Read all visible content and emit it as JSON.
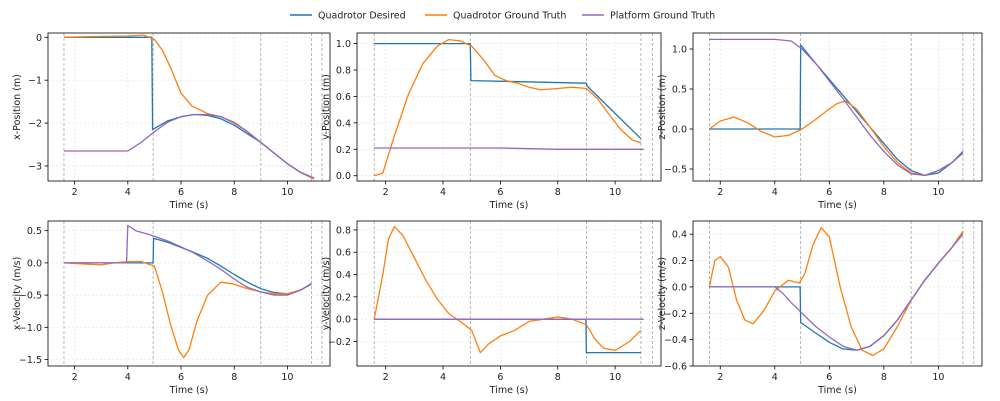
{
  "legend": {
    "entries": [
      {
        "label": "Quadrotor Desired",
        "color": "#1f77b4"
      },
      {
        "label": "Quadrotor Ground Truth",
        "color": "#ff7f0e"
      },
      {
        "label": "Platform Ground Truth",
        "color": "#9467bd"
      }
    ],
    "placement": "top-center"
  },
  "chart_data": [
    {
      "type": "line",
      "xlabel": "Time (s)",
      "ylabel": "x-Position (m)",
      "xlim": [
        1.0,
        11.6
      ],
      "ylim": [
        -3.35,
        0.1
      ],
      "xticks": [
        2,
        4,
        6,
        8,
        10
      ],
      "yticks": [
        0,
        -1,
        -2,
        -3
      ],
      "yticklabels": [
        "0",
        "−1",
        "−2",
        "−3"
      ],
      "vlines": [
        1.6,
        4.95,
        9.0,
        10.9,
        11.3
      ],
      "grid": true,
      "series": [
        {
          "name": "Quadrotor Desired",
          "color": "#1f77b4",
          "x": [
            1.6,
            4.9,
            4.93,
            5.5,
            6.0,
            6.5,
            7.0,
            7.5,
            8.0,
            8.5,
            9.0,
            9.5,
            10.0,
            10.5,
            11.0
          ],
          "y": [
            0.0,
            0.0,
            -2.15,
            -1.95,
            -1.85,
            -1.8,
            -1.82,
            -1.9,
            -2.05,
            -2.25,
            -2.45,
            -2.7,
            -2.95,
            -3.15,
            -3.3
          ]
        },
        {
          "name": "Quadrotor Ground Truth",
          "color": "#ff7f0e",
          "x": [
            1.6,
            3.0,
            4.0,
            4.6,
            5.0,
            5.3,
            5.6,
            6.0,
            6.4,
            7.0,
            7.5,
            8.0,
            8.5,
            9.0,
            9.5,
            10.0,
            10.5,
            11.0
          ],
          "y": [
            0.0,
            0.02,
            0.03,
            0.05,
            -0.05,
            -0.3,
            -0.7,
            -1.3,
            -1.6,
            -1.78,
            -1.85,
            -1.98,
            -2.2,
            -2.45,
            -2.7,
            -2.95,
            -3.15,
            -3.3
          ]
        },
        {
          "name": "Platform Ground Truth",
          "color": "#9467bd",
          "x": [
            1.6,
            3.0,
            4.0,
            4.5,
            5.0,
            5.5,
            6.0,
            6.5,
            7.0,
            7.5,
            8.0,
            8.5,
            9.0,
            9.5,
            10.0,
            10.5,
            11.0
          ],
          "y": [
            -2.65,
            -2.65,
            -2.65,
            -2.45,
            -2.2,
            -1.98,
            -1.85,
            -1.8,
            -1.8,
            -1.85,
            -2.0,
            -2.2,
            -2.45,
            -2.7,
            -2.95,
            -3.15,
            -3.28
          ]
        }
      ]
    },
    {
      "type": "line",
      "xlabel": "Time (s)",
      "ylabel": "y-Position (m)",
      "xlim": [
        1.0,
        11.6
      ],
      "ylim": [
        -0.04,
        1.08
      ],
      "xticks": [
        2,
        4,
        6,
        8,
        10
      ],
      "yticks": [
        0.0,
        0.2,
        0.4,
        0.6,
        0.8,
        1.0
      ],
      "yticklabels": [
        "0.0",
        "0.2",
        "0.4",
        "0.6",
        "0.8",
        "1.0"
      ],
      "vlines": [
        1.6,
        4.95,
        9.0,
        10.9,
        11.3
      ],
      "grid": true,
      "series": [
        {
          "name": "Quadrotor Desired",
          "color": "#1f77b4",
          "x": [
            1.6,
            4.95,
            4.97,
            9.0,
            9.02,
            10.9
          ],
          "y": [
            1.0,
            1.0,
            0.72,
            0.7,
            0.68,
            0.28
          ]
        },
        {
          "name": "Quadrotor Ground Truth",
          "color": "#ff7f0e",
          "x": [
            1.6,
            1.9,
            2.3,
            2.8,
            3.3,
            3.8,
            4.2,
            4.6,
            5.0,
            5.4,
            5.8,
            6.2,
            6.6,
            7.0,
            7.4,
            8.0,
            8.5,
            9.0,
            9.4,
            9.8,
            10.2,
            10.6,
            10.9
          ],
          "y": [
            0.0,
            0.02,
            0.3,
            0.62,
            0.85,
            0.98,
            1.03,
            1.02,
            0.98,
            0.88,
            0.76,
            0.72,
            0.7,
            0.67,
            0.65,
            0.66,
            0.67,
            0.66,
            0.58,
            0.46,
            0.35,
            0.27,
            0.25
          ]
        },
        {
          "name": "Platform Ground Truth",
          "color": "#9467bd",
          "x": [
            1.6,
            4.0,
            6.0,
            8.0,
            9.5,
            11.0
          ],
          "y": [
            0.21,
            0.21,
            0.21,
            0.2,
            0.2,
            0.2
          ]
        }
      ]
    },
    {
      "type": "line",
      "xlabel": "Time (s)",
      "ylabel": "z-Position (m)",
      "xlim": [
        1.0,
        11.6
      ],
      "ylim": [
        -0.65,
        1.2
      ],
      "xticks": [
        2,
        4,
        6,
        8,
        10
      ],
      "yticks": [
        -0.5,
        0.0,
        0.5,
        1.0
      ],
      "yticklabels": [
        "−0.5",
        "0.0",
        "0.5",
        "1.0"
      ],
      "vlines": [
        1.6,
        4.95,
        9.0,
        10.9,
        11.3
      ],
      "grid": true,
      "series": [
        {
          "name": "Quadrotor Desired",
          "color": "#1f77b4",
          "x": [
            1.6,
            4.93,
            4.95,
            5.5,
            6.0,
            6.5,
            7.0,
            7.5,
            8.0,
            8.5,
            9.0,
            9.5,
            10.0,
            10.5,
            10.9
          ],
          "y": [
            0.0,
            0.0,
            1.05,
            0.82,
            0.62,
            0.42,
            0.22,
            0.02,
            -0.18,
            -0.38,
            -0.52,
            -0.58,
            -0.55,
            -0.42,
            -0.28
          ]
        },
        {
          "name": "Quadrotor Ground Truth",
          "color": "#ff7f0e",
          "x": [
            1.6,
            2.0,
            2.5,
            3.0,
            3.5,
            4.0,
            4.5,
            5.0,
            5.5,
            6.0,
            6.3,
            6.6,
            7.0,
            7.5,
            8.0,
            8.5,
            9.0,
            9.5,
            10.0,
            10.5,
            10.9
          ],
          "y": [
            0.0,
            0.1,
            0.15,
            0.08,
            -0.03,
            -0.1,
            -0.08,
            0.0,
            0.12,
            0.25,
            0.32,
            0.35,
            0.25,
            0.02,
            -0.22,
            -0.42,
            -0.55,
            -0.58,
            -0.52,
            -0.42,
            -0.3
          ]
        },
        {
          "name": "Platform Ground Truth",
          "color": "#9467bd",
          "x": [
            1.6,
            3.0,
            4.0,
            4.6,
            5.0,
            5.5,
            6.0,
            6.5,
            7.0,
            7.5,
            8.0,
            8.5,
            9.0,
            9.5,
            10.0,
            10.5,
            10.9
          ],
          "y": [
            1.12,
            1.12,
            1.12,
            1.1,
            1.0,
            0.82,
            0.6,
            0.38,
            0.15,
            -0.08,
            -0.28,
            -0.45,
            -0.56,
            -0.58,
            -0.52,
            -0.42,
            -0.3
          ]
        }
      ]
    },
    {
      "type": "line",
      "xlabel": "Time (s)",
      "ylabel": "x-Velocity (m/s)",
      "xlim": [
        1.0,
        11.6
      ],
      "ylim": [
        -1.6,
        0.65
      ],
      "xticks": [
        2,
        4,
        6,
        8,
        10
      ],
      "yticks": [
        0.5,
        0.0,
        -0.5,
        -1.0,
        -1.5
      ],
      "yticklabels": [
        "0.5",
        "0.0",
        "−0.5",
        "−1.0",
        "−1.5"
      ],
      "vlines": [
        1.6,
        4.95,
        9.0,
        10.9,
        11.3
      ],
      "grid": true,
      "series": [
        {
          "name": "Quadrotor Desired",
          "color": "#1f77b4",
          "x": [
            1.6,
            4.95,
            4.97,
            5.5,
            6.0,
            6.5,
            7.0,
            7.5,
            8.0,
            8.5,
            9.0,
            9.5,
            10.0,
            10.5,
            10.9
          ],
          "y": [
            0.0,
            0.0,
            0.38,
            0.32,
            0.24,
            0.16,
            0.07,
            -0.05,
            -0.18,
            -0.3,
            -0.4,
            -0.46,
            -0.48,
            -0.42,
            -0.32
          ]
        },
        {
          "name": "Quadrotor Ground Truth",
          "color": "#ff7f0e",
          "x": [
            1.6,
            2.5,
            3.0,
            3.5,
            4.0,
            4.5,
            5.0,
            5.3,
            5.6,
            5.9,
            6.1,
            6.3,
            6.6,
            7.0,
            7.5,
            8.0,
            8.5,
            9.0,
            9.5,
            10.0,
            10.5,
            10.9
          ],
          "y": [
            0.0,
            -0.02,
            -0.03,
            0.0,
            0.02,
            0.02,
            -0.05,
            -0.45,
            -0.95,
            -1.35,
            -1.47,
            -1.35,
            -0.9,
            -0.5,
            -0.3,
            -0.33,
            -0.4,
            -0.45,
            -0.48,
            -0.48,
            -0.42,
            -0.33
          ]
        },
        {
          "name": "Platform Ground Truth",
          "color": "#9467bd",
          "x": [
            1.6,
            3.5,
            3.95,
            4.0,
            4.3,
            4.8,
            5.5,
            6.0,
            6.5,
            7.0,
            7.5,
            8.0,
            8.5,
            9.0,
            9.5,
            10.0,
            10.5,
            10.9
          ],
          "y": [
            0.0,
            0.0,
            0.0,
            0.58,
            0.5,
            0.44,
            0.34,
            0.25,
            0.15,
            0.03,
            -0.1,
            -0.25,
            -0.38,
            -0.45,
            -0.5,
            -0.5,
            -0.42,
            -0.33
          ]
        }
      ]
    },
    {
      "type": "line",
      "xlabel": "Time (s)",
      "ylabel": "y-Velocity (m/s)",
      "xlim": [
        1.0,
        11.6
      ],
      "ylim": [
        -0.42,
        0.88
      ],
      "xticks": [
        2,
        4,
        6,
        8,
        10
      ],
      "yticks": [
        0.8,
        0.6,
        0.4,
        0.2,
        0.0,
        -0.2
      ],
      "yticklabels": [
        "0.8",
        "0.6",
        "0.4",
        "0.2",
        "0.0",
        "−0.2"
      ],
      "vlines": [
        1.6,
        4.95,
        9.0,
        10.9,
        11.3
      ],
      "grid": true,
      "series": [
        {
          "name": "Quadrotor Desired",
          "color": "#1f77b4",
          "x": [
            1.6,
            8.98,
            9.0,
            10.9
          ],
          "y": [
            0.0,
            0.0,
            -0.3,
            -0.3
          ]
        },
        {
          "name": "Quadrotor Ground Truth",
          "color": "#ff7f0e",
          "x": [
            1.6,
            1.9,
            2.1,
            2.3,
            2.6,
            3.0,
            3.4,
            3.8,
            4.2,
            4.6,
            5.0,
            5.3,
            5.6,
            6.0,
            6.5,
            7.0,
            7.5,
            8.0,
            8.5,
            9.0,
            9.3,
            9.6,
            10.0,
            10.5,
            10.9
          ],
          "y": [
            0.0,
            0.4,
            0.72,
            0.83,
            0.75,
            0.55,
            0.35,
            0.18,
            0.05,
            -0.02,
            -0.1,
            -0.3,
            -0.22,
            -0.15,
            -0.1,
            -0.02,
            0.0,
            0.02,
            0.0,
            -0.05,
            -0.18,
            -0.26,
            -0.28,
            -0.2,
            -0.1
          ]
        },
        {
          "name": "Platform Ground Truth",
          "color": "#9467bd",
          "x": [
            1.6,
            4.0,
            6.0,
            8.0,
            10.0,
            11.0
          ],
          "y": [
            0.0,
            0.0,
            0.0,
            0.0,
            0.0,
            0.0
          ]
        }
      ]
    },
    {
      "type": "line",
      "xlabel": "Time (s)",
      "ylabel": "z-Velocity (m/s)",
      "xlim": [
        1.0,
        11.6
      ],
      "ylim": [
        -0.6,
        0.5
      ],
      "xticks": [
        2,
        4,
        6,
        8,
        10
      ],
      "yticks": [
        0.4,
        0.2,
        0.0,
        -0.2,
        -0.4,
        -0.6
      ],
      "yticklabels": [
        "0.4",
        "0.2",
        "0.0",
        "−0.2",
        "−0.4",
        "−0.6"
      ],
      "vlines": [
        1.6,
        4.95,
        9.0,
        10.9,
        11.3
      ],
      "grid": true,
      "series": [
        {
          "name": "Quadrotor Desired",
          "color": "#1f77b4",
          "x": [
            1.6,
            4.93,
            4.95,
            5.5,
            6.0,
            6.5,
            7.0,
            7.5,
            8.0,
            8.5,
            9.0,
            9.5,
            10.0,
            10.5,
            10.9
          ],
          "y": [
            0.0,
            0.0,
            -0.27,
            -0.35,
            -0.42,
            -0.47,
            -0.48,
            -0.45,
            -0.37,
            -0.25,
            -0.1,
            0.05,
            0.18,
            0.3,
            0.42
          ]
        },
        {
          "name": "Quadrotor Ground Truth",
          "color": "#ff7f0e",
          "x": [
            1.6,
            1.8,
            2.0,
            2.3,
            2.6,
            2.9,
            3.2,
            3.6,
            4.0,
            4.5,
            4.9,
            5.1,
            5.4,
            5.7,
            6.0,
            6.4,
            6.8,
            7.2,
            7.6,
            8.0,
            8.5,
            9.0,
            9.5,
            10.0,
            10.5,
            10.9
          ],
          "y": [
            0.0,
            0.2,
            0.23,
            0.15,
            -0.1,
            -0.25,
            -0.28,
            -0.18,
            -0.03,
            0.05,
            0.03,
            0.1,
            0.32,
            0.45,
            0.38,
            0.0,
            -0.3,
            -0.48,
            -0.52,
            -0.47,
            -0.3,
            -0.1,
            0.05,
            0.18,
            0.3,
            0.42
          ]
        },
        {
          "name": "Platform Ground Truth",
          "color": "#9467bd",
          "x": [
            1.6,
            3.0,
            3.8,
            4.0,
            4.3,
            4.6,
            5.0,
            5.5,
            6.0,
            6.5,
            7.0,
            7.5,
            8.0,
            8.5,
            9.0,
            9.5,
            10.0,
            10.5,
            10.9
          ],
          "y": [
            0.0,
            0.0,
            0.0,
            0.0,
            -0.05,
            -0.12,
            -0.2,
            -0.3,
            -0.38,
            -0.45,
            -0.48,
            -0.45,
            -0.37,
            -0.25,
            -0.1,
            0.05,
            0.18,
            0.3,
            0.4
          ]
        }
      ]
    }
  ]
}
